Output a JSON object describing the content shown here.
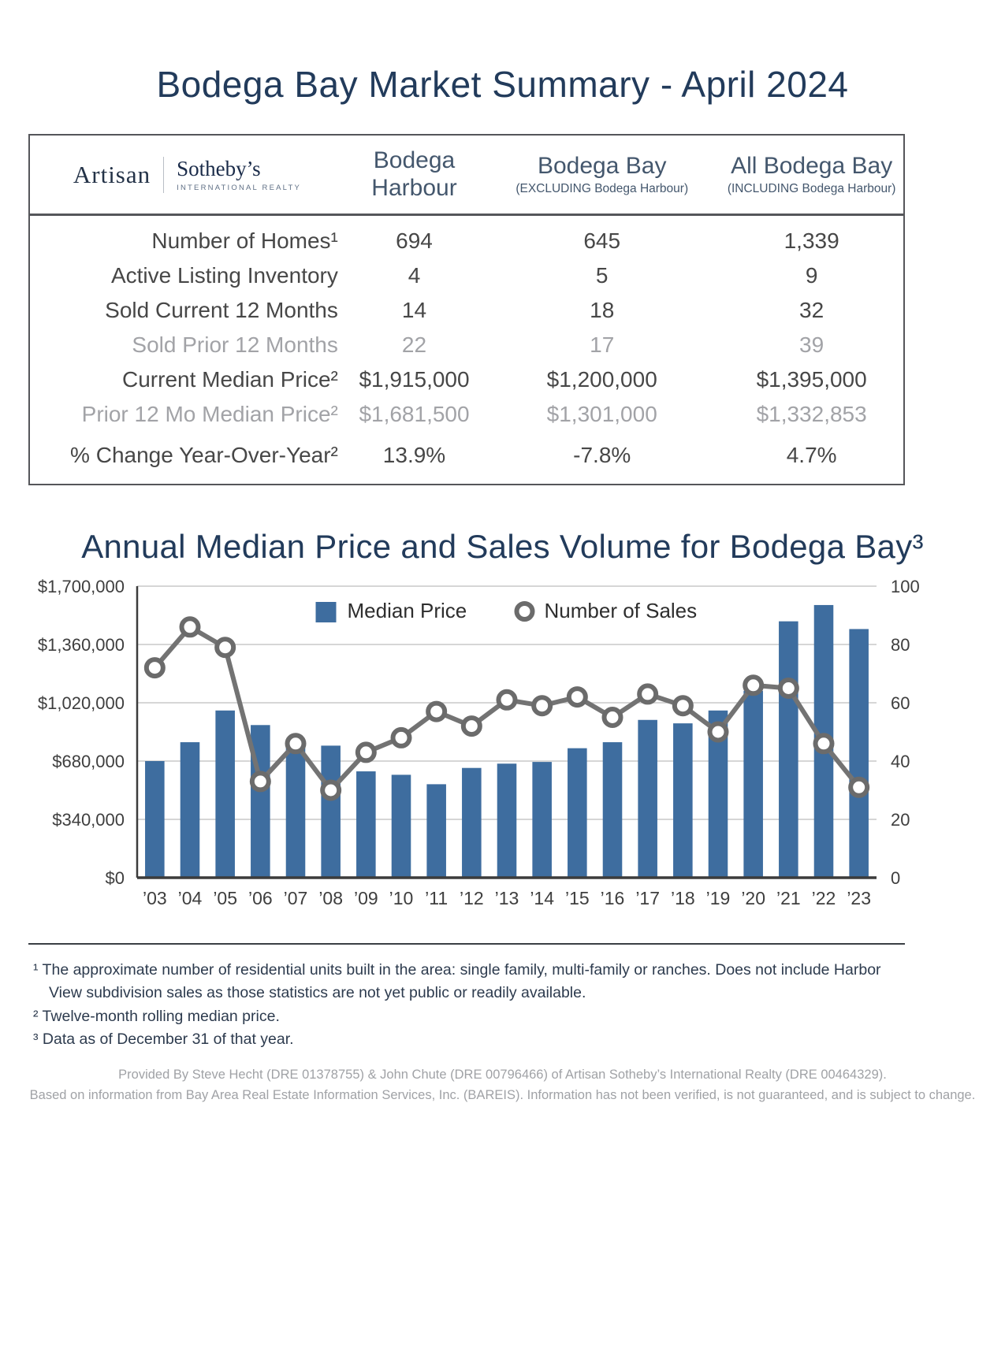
{
  "title": "Bodega Bay Market Summary - April 2024",
  "logo": {
    "artisan": "Artisan",
    "sothebys": "Sotheby’s",
    "tagline": "INTERNATIONAL REALTY"
  },
  "table": {
    "columns": [
      {
        "title": "Bodega Harbour",
        "subtitle": ""
      },
      {
        "title": "Bodega Bay",
        "subtitle": "(EXCLUDING Bodega Harbour)"
      },
      {
        "title": "All Bodega Bay",
        "subtitle": "(INCLUDING Bodega Harbour)"
      }
    ],
    "rows": [
      {
        "label": "Number of Homes¹",
        "values": [
          "694",
          "645",
          "1,339"
        ]
      },
      {
        "label": "Active Listing Inventory",
        "values": [
          "4",
          "5",
          "9"
        ]
      },
      {
        "label": "Sold Current 12 Months",
        "values": [
          "14",
          "18",
          "32"
        ]
      },
      {
        "label": "Sold Prior 12 Months",
        "values": [
          "22",
          "17",
          "39"
        ]
      },
      {
        "label": "Current Median Price²",
        "values": [
          "$1,915,000",
          "$1,200,000",
          "$1,395,000"
        ]
      },
      {
        "label": "Prior 12 Mo Median Price²",
        "values": [
          "$1,681,500",
          "$1,301,000",
          "$1,332,853"
        ]
      },
      {
        "label": "% Change Year-Over-Year²",
        "values": [
          "13.9%",
          "-7.8%",
          "4.7%"
        ]
      }
    ]
  },
  "chart_title": "Annual Median Price and Sales Volume for Bodega Bay³",
  "chart_data": {
    "type": "bar+line",
    "title": "Annual Median Price and Sales Volume for Bodega Bay",
    "categories": [
      "’03",
      "’04",
      "’05",
      "’06",
      "’07",
      "’08",
      "’09",
      "’10",
      "’11",
      "’12",
      "’13",
      "’14",
      "’15",
      "’16",
      "’17",
      "’18",
      "’19",
      "’20",
      "’21",
      "’22",
      "’23"
    ],
    "series": [
      {
        "name": "Median Price",
        "type": "bar",
        "axis": "left",
        "values": [
          680000,
          790000,
          975000,
          890000,
          775000,
          770000,
          620000,
          600000,
          545000,
          640000,
          665000,
          675000,
          755000,
          790000,
          920000,
          900000,
          975000,
          1090000,
          1495000,
          1590000,
          1450000
        ]
      },
      {
        "name": "Number of Sales",
        "type": "line",
        "axis": "right",
        "values": [
          72,
          86,
          79,
          33,
          46,
          30,
          43,
          48,
          57,
          52,
          61,
          59,
          62,
          55,
          63,
          59,
          50,
          66,
          65,
          46,
          31
        ]
      }
    ],
    "ylim": [
      0,
      1700000
    ],
    "y2lim": [
      0,
      100
    ],
    "yticks": [
      {
        "value": 0,
        "label": "$0"
      },
      {
        "value": 340000,
        "label": "$340,000"
      },
      {
        "value": 680000,
        "label": "$680,000"
      },
      {
        "value": 1020000,
        "label": "$1,020,000"
      },
      {
        "value": 1360000,
        "label": "$1,360,000"
      },
      {
        "value": 1700000,
        "label": "$1,700,000"
      }
    ],
    "y2ticks": [
      {
        "value": 0,
        "label": "0"
      },
      {
        "value": 20,
        "label": "20"
      },
      {
        "value": 40,
        "label": "40"
      },
      {
        "value": 60,
        "label": "60"
      },
      {
        "value": 80,
        "label": "80"
      },
      {
        "value": 100,
        "label": "100"
      }
    ],
    "colors": {
      "bar": "#3e6d9f",
      "line": "#737373",
      "grid": "#c9c9c9",
      "axis": "#3c3c3c"
    },
    "legend_position": "top-center",
    "grid": "horizontal"
  },
  "footnotes": [
    "¹ The approximate number of residential units built in the area: single family, multi-family or ranches. Does not include Harbor View subdivision sales as those statistics are not yet public or readily available.",
    "² Twelve-month rolling median price.",
    "³ Data as of December 31 of that year."
  ],
  "credits": [
    "Provided By Steve Hecht (DRE 01378755) & John Chute (DRE 00796466) of Artisan Sotheby’s International Realty (DRE 00464329).",
    "Based on information from Bay Area Real Estate Information Services, Inc. (BAREIS). Information has not been verified, is not guaranteed, and is subject to change."
  ]
}
